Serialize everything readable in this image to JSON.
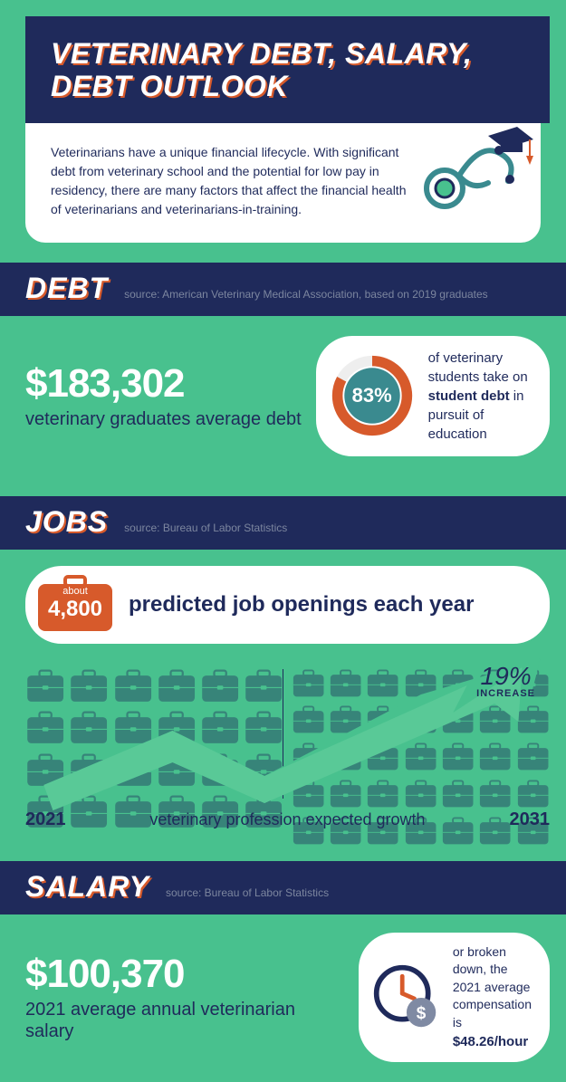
{
  "colors": {
    "bg": "#48c18e",
    "navy": "#1f2a5b",
    "orange": "#d75a2b",
    "teal": "#3a8a8f",
    "white": "#ffffff",
    "source_gray": "#7c869f"
  },
  "header": {
    "title": "VETERINARY DEBT, SALARY, DEBT OUTLOOK",
    "intro": "Veterinarians have a unique financial lifecycle. With significant debt from veterinary school and the potential for low pay in residency, there are many factors that affect the financial health of veterinarians and veterinarians-in-training."
  },
  "debt": {
    "heading": "DEBT",
    "source": "source: American Veterinary Medical Association, based on 2019 graduates",
    "value": "$183,302",
    "label": "veterinary graduates average debt",
    "pie_pct": 83,
    "pie_label": "83%",
    "desc_pre": "of veterinary students take on ",
    "desc_bold": "student debt",
    "desc_post": " in pursuit of education"
  },
  "jobs": {
    "heading": "JOBS",
    "source": "source: Bureau of Labor Statistics",
    "badge_about": "about",
    "badge_num": "4,800",
    "openings_text": "predicted job openings each year",
    "increase_pct": "19%",
    "increase_word": "INCREASE",
    "year_start": "2021",
    "growth_text": "veterinary profession expected growth",
    "year_end": "2031",
    "grid_left_cols": 6,
    "grid_left_rows": 4,
    "grid_right_cols": 7,
    "grid_right_rows": 5
  },
  "salary": {
    "heading": "SALARY",
    "source": "source: Bureau of Labor Statistics",
    "value": "$100,370",
    "label": "2021 average annual veterinarian salary",
    "desc_pre": "or broken down, the 2021 average compensation is",
    "desc_bold": "$48.26/hour"
  }
}
